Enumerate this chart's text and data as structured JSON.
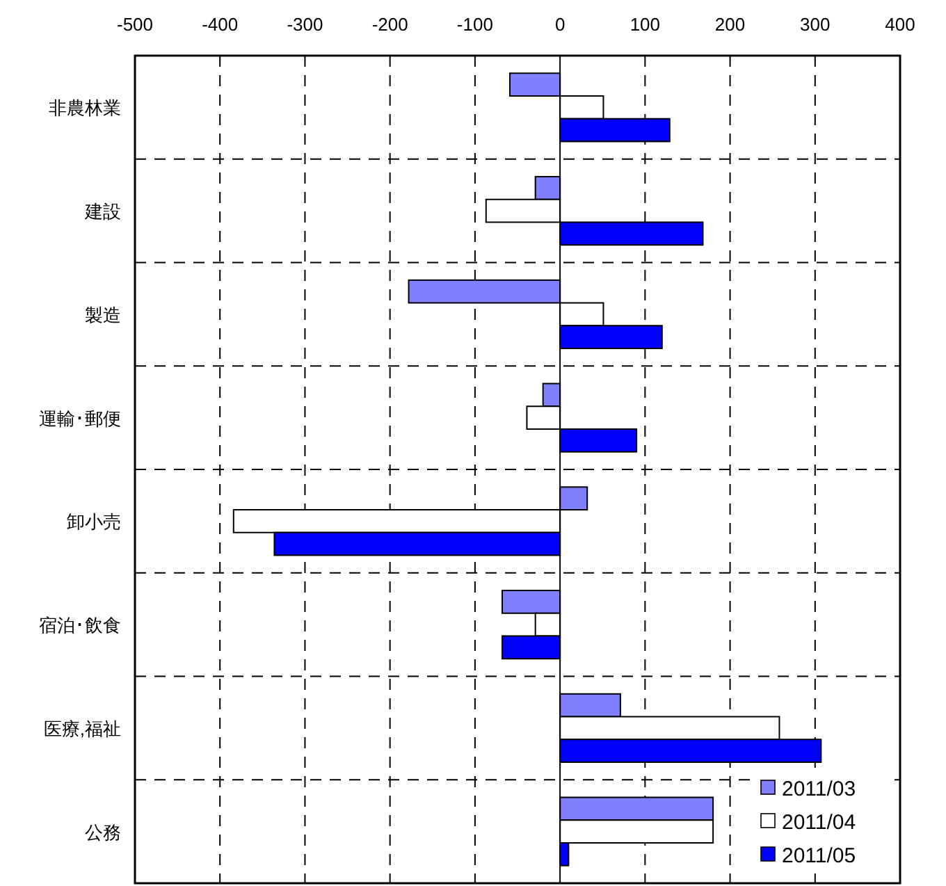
{
  "chart_data": {
    "type": "bar",
    "orientation": "horizontal",
    "categories": [
      "非農林業",
      "建設",
      "製造",
      "運輸･郵便",
      "卸小売",
      "宿泊･飲食",
      "医療,福祉",
      "公務"
    ],
    "series": [
      {
        "name": "2011/03",
        "color": "#8080ff",
        "values": [
          -59,
          -29,
          -178,
          -20,
          32,
          -68,
          71,
          180
        ]
      },
      {
        "name": "2011/04",
        "color": "#ffffff",
        "values": [
          51,
          -87,
          51,
          -39,
          -384,
          -29,
          258,
          180
        ]
      },
      {
        "name": "2011/05",
        "color": "#0000ff",
        "values": [
          129,
          168,
          120,
          90,
          -336,
          -68,
          307,
          10
        ]
      }
    ],
    "xlim": [
      -500,
      400
    ],
    "xticks": [
      -500,
      -400,
      -300,
      -200,
      -100,
      0,
      100,
      200,
      300,
      400
    ],
    "grid": true,
    "legend": "bottom right"
  }
}
